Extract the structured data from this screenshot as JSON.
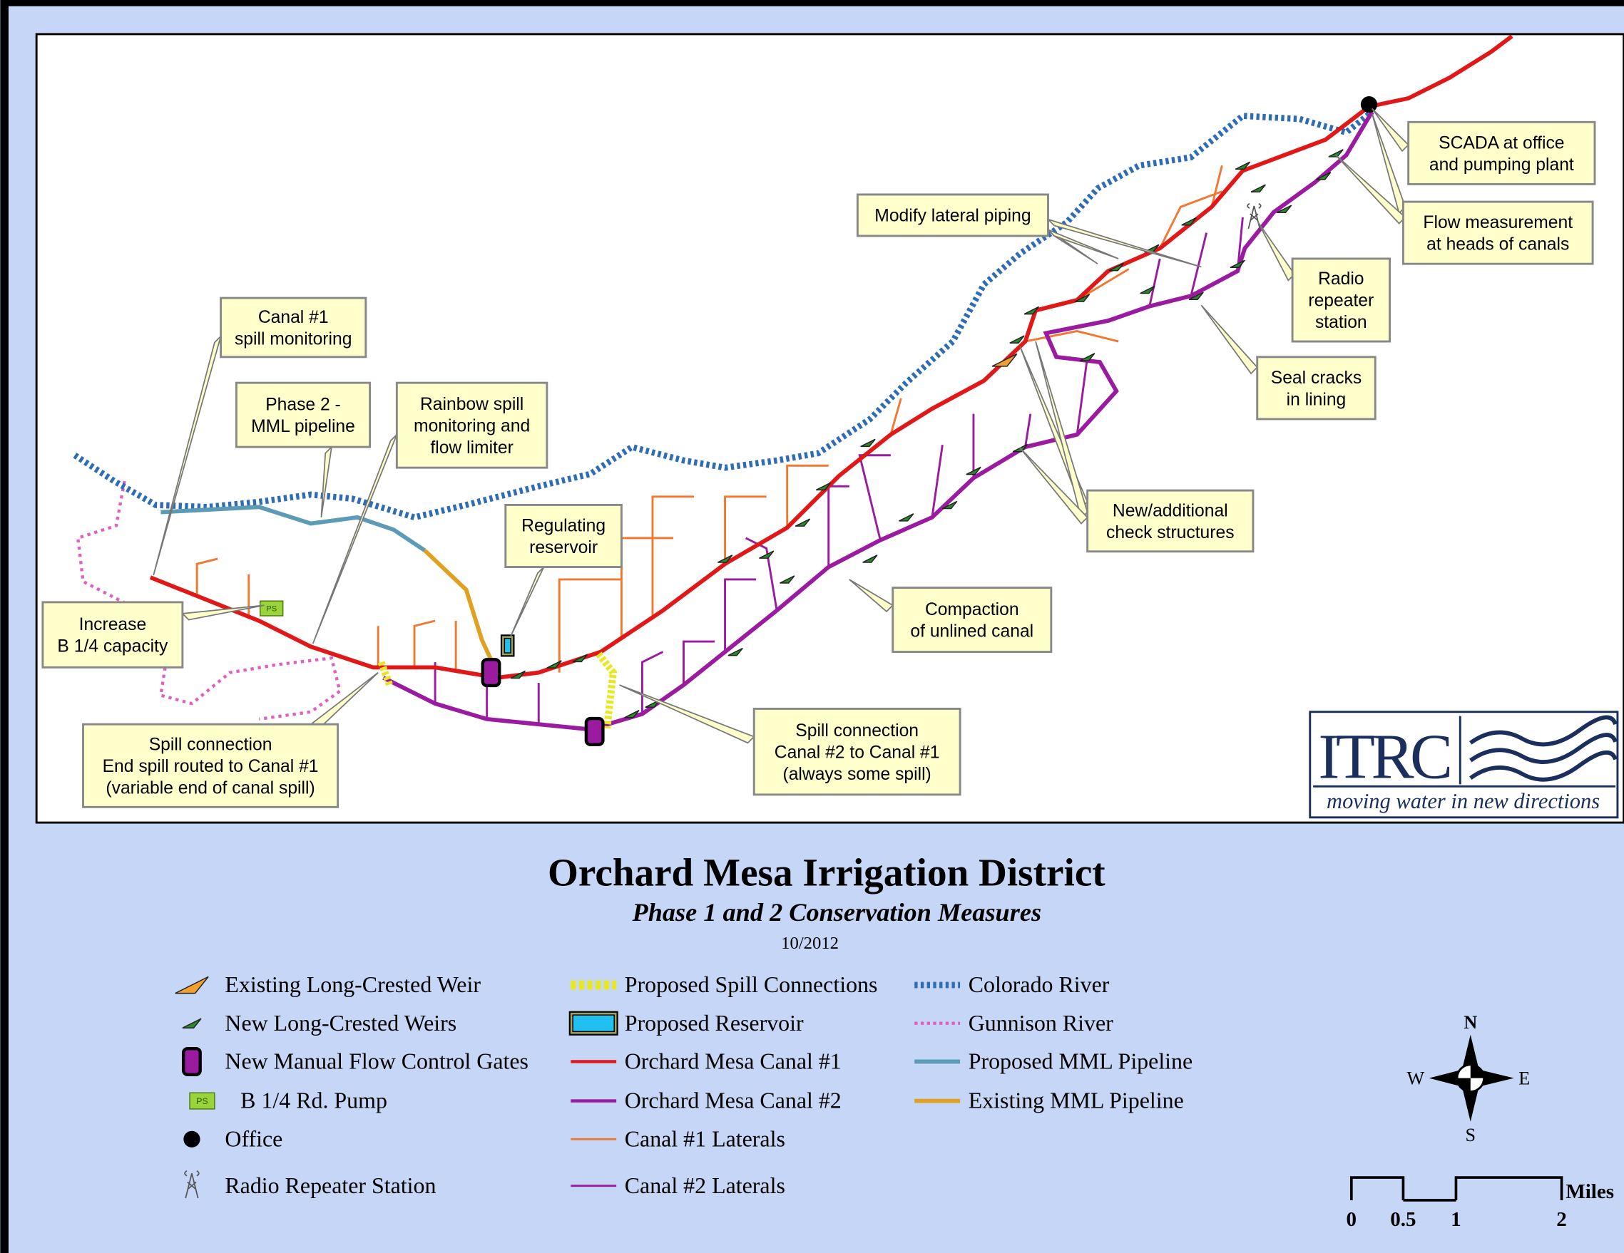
{
  "map": {
    "title": "Orchard Mesa Irrigation District",
    "subtitle": "Phase 1 and 2 Conservation Measures",
    "date": "10/2012",
    "callouts": [
      {
        "lines": [
          "SCADA at office",
          "and pumping plant"
        ]
      },
      {
        "lines": [
          "Flow measurement",
          "at heads of canals"
        ]
      },
      {
        "lines": [
          "Modify lateral piping"
        ]
      },
      {
        "lines": [
          "Radio",
          "repeater",
          "station"
        ]
      },
      {
        "lines": [
          "Seal cracks",
          "in lining"
        ]
      },
      {
        "lines": [
          "Canal #1",
          "spill monitoring"
        ]
      },
      {
        "lines": [
          "Phase 2 -",
          "MML pipeline"
        ]
      },
      {
        "lines": [
          "Rainbow spill",
          "monitoring and",
          "flow limiter"
        ]
      },
      {
        "lines": [
          "Regulating",
          "reservoir"
        ]
      },
      {
        "lines": [
          "Increase",
          "B 1/4 capacity"
        ]
      },
      {
        "lines": [
          "New/additional",
          "check structures"
        ]
      },
      {
        "lines": [
          "Compaction",
          "of unlined canal"
        ]
      },
      {
        "lines": [
          "Spill connection",
          "Canal #2 to Canal #1",
          "(always some spill)"
        ]
      },
      {
        "lines": [
          "Spill connection",
          "End spill routed to Canal #1",
          "(variable end of canal spill)"
        ]
      }
    ],
    "pump_icon_label": "PS",
    "legend": [
      [
        "Existing Long-Crested Weir",
        "New Long-Crested Weirs",
        "New Manual Flow Control Gates",
        "B 1/4 Rd. Pump",
        "Office",
        "Radio Repeater Station"
      ],
      [
        "Proposed Spill Connections",
        "Proposed Reservoir",
        "Orchard Mesa Canal #1",
        "Orchard Mesa Canal #2",
        "Canal #1 Laterals",
        "Canal #2 Laterals"
      ],
      [
        "Colorado River",
        "Gunnison River",
        "Proposed MML Pipeline",
        "Existing MML Pipeline"
      ]
    ],
    "compass": {
      "north": "N",
      "south": "S",
      "east": "E",
      "west": "W"
    },
    "scale_bar": {
      "labels": [
        "0",
        "0.5",
        "1",
        "2"
      ],
      "unit": "Miles"
    },
    "logo": {
      "name": "ITRC",
      "tagline": "moving water in new directions"
    }
  }
}
